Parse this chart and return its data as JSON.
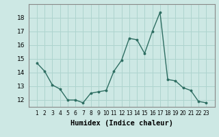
{
  "x": [
    1,
    2,
    3,
    4,
    5,
    6,
    7,
    8,
    9,
    10,
    11,
    12,
    13,
    14,
    15,
    16,
    17,
    18,
    19,
    20,
    21,
    22,
    23
  ],
  "y": [
    14.7,
    14.1,
    13.1,
    12.8,
    12.0,
    12.0,
    11.8,
    12.5,
    12.6,
    12.7,
    14.1,
    14.9,
    16.5,
    16.4,
    15.4,
    17.0,
    18.4,
    13.5,
    13.4,
    12.9,
    12.7,
    11.9,
    11.8
  ],
  "line_color": "#2e6e62",
  "marker": "o",
  "marker_size": 1.8,
  "line_width": 1.0,
  "background_color": "#cde8e4",
  "grid_color": "#aed4ce",
  "xlabel": "Humidex (Indice chaleur)",
  "xlabel_fontsize": 7.5,
  "ylim": [
    11.5,
    19.0
  ],
  "yticks": [
    12,
    13,
    14,
    15,
    16,
    17,
    18
  ],
  "xtick_fontsize": 5.5,
  "ytick_fontsize": 6.5
}
